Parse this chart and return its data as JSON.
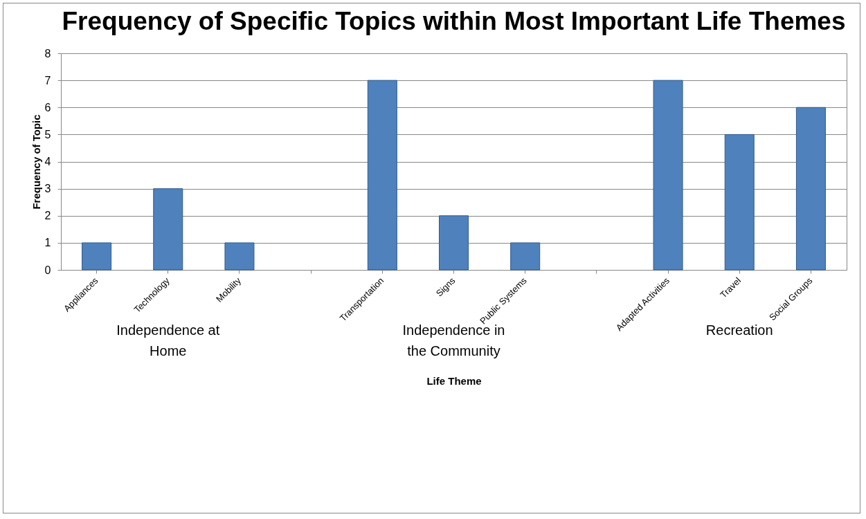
{
  "chart_data": {
    "type": "bar",
    "title": "Frequency of Specific Topics within Most Important Life Themes",
    "xlabel": "Life Theme",
    "ylabel": "Frequency of Topic",
    "categories": [
      "Appliances",
      "Technology",
      "Mobility",
      null,
      "Transportation",
      "Signs",
      "Public Systems",
      null,
      "Adapted Activities",
      "Travel",
      "Social Groups"
    ],
    "values": [
      1,
      3,
      1,
      null,
      7,
      2,
      1,
      null,
      7,
      5,
      6
    ],
    "color": "#4f81bd",
    "annotations": [
      "Independence at Home",
      "Independence in the Community",
      "Recreation"
    ],
    "ylim": [
      0,
      8
    ],
    "yticks": [
      0,
      1,
      2,
      3,
      4,
      5,
      6,
      7,
      8
    ],
    "grid": "y"
  }
}
